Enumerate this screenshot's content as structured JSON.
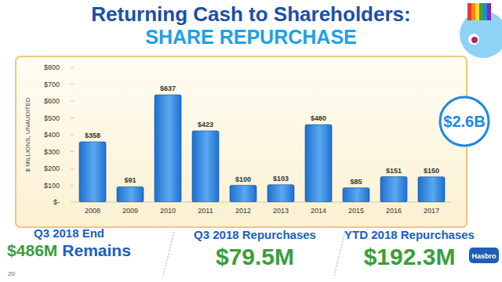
{
  "chart_data": {
    "type": "bar",
    "title": "Returning Cash to Shareholders:",
    "subtitle": "SHARE REPURCHASE",
    "y_label": "$ MILLIONS, UNAUDITED",
    "annotations": [
      "$2.6B"
    ],
    "categories": [
      "2008",
      "2009",
      "2010",
      "2011",
      "2012",
      "2013",
      "2014",
      "2015",
      "2016",
      "2017"
    ],
    "values": [
      358,
      91,
      637,
      423,
      100,
      103,
      460,
      85,
      151,
      150
    ],
    "value_labels": [
      "$358",
      "$91",
      "$637",
      "$423",
      "$100",
      "$103",
      "$460",
      "$85",
      "$151",
      "$150"
    ],
    "color": "#1e6fd0",
    "data_labels": true,
    "grid": false,
    "ylim": [
      0,
      800
    ],
    "yticks": [
      {
        "value": 0,
        "label": "$-"
      },
      {
        "value": 100,
        "label": "$100"
      },
      {
        "value": 200,
        "label": "$200"
      },
      {
        "value": 300,
        "label": "$300"
      },
      {
        "value": 400,
        "label": "$400"
      },
      {
        "value": 500,
        "label": "$500"
      },
      {
        "value": 600,
        "label": "$600"
      },
      {
        "value": 700,
        "label": "$700"
      },
      {
        "value": 800,
        "label": "$800"
      }
    ]
  },
  "callouts": [
    {
      "label": "Q3 2018 End",
      "value": "$486M",
      "suffix": "Remains"
    },
    {
      "label": "Q3 2018 Repurchases",
      "value": "$79.5M"
    },
    {
      "label": "YTD 2018 Repurchases",
      "value": "$192.3M"
    }
  ],
  "page_number": "20",
  "logo": "Hasbro"
}
